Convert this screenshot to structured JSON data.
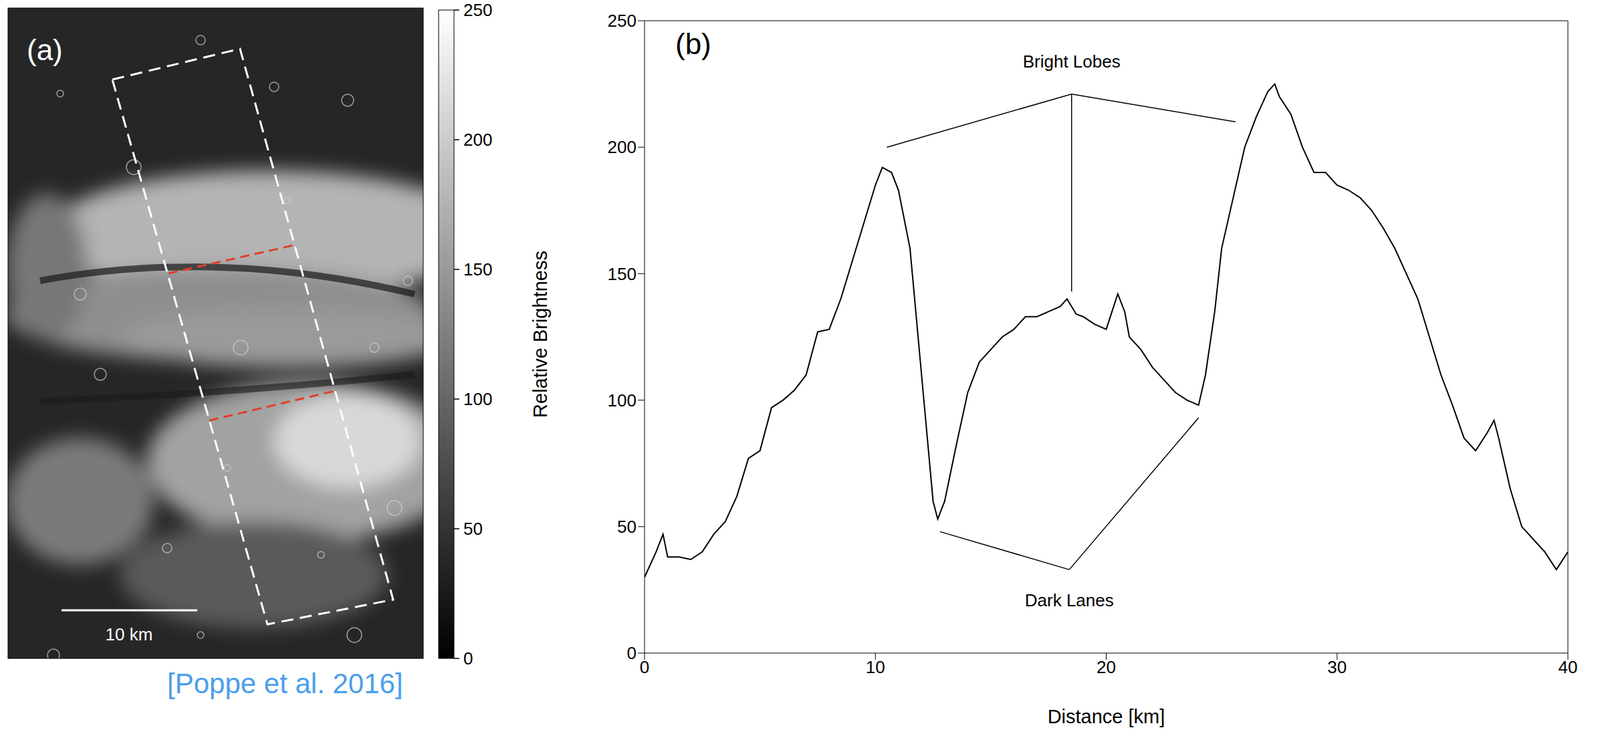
{
  "chart_data": [
    {
      "type": "image",
      "panel": "(a)",
      "scale_bar": "10 km",
      "colorbar": {
        "label": "Relative Brightness",
        "range": [
          0,
          250
        ],
        "ticks": [
          0,
          50,
          100,
          150,
          200,
          250
        ]
      }
    },
    {
      "type": "line",
      "panel": "(b)",
      "x_label": "Distance [km]",
      "color": "#000000",
      "xlim": [
        0,
        40
      ],
      "xticks": [
        0,
        10,
        20,
        30,
        40
      ],
      "ylim": [
        0,
        250
      ],
      "yticks": [
        0,
        50,
        100,
        150,
        200,
        250
      ],
      "x": [
        0,
        0.5,
        0.8,
        1,
        1.5,
        2,
        2.5,
        3,
        3.5,
        4,
        4.5,
        5,
        5.5,
        6,
        6.5,
        7,
        7.5,
        8,
        8.5,
        9,
        9.5,
        10,
        10.3,
        10.7,
        11,
        11.5,
        12,
        12.5,
        12.7,
        13,
        13.5,
        14,
        14.5,
        15,
        15.5,
        16,
        16.5,
        17,
        17.5,
        18,
        18.3,
        18.7,
        19,
        19.5,
        20,
        20.5,
        20.8,
        21,
        21.5,
        22,
        22.5,
        23,
        23.5,
        24,
        24.3,
        24.7,
        25,
        25.5,
        26,
        26.5,
        27,
        27.3,
        27.5,
        28,
        28.5,
        29,
        29.5,
        30,
        30.5,
        31,
        31.5,
        32,
        32.5,
        33,
        33.5,
        34,
        34.5,
        35,
        35.5,
        36,
        36.5,
        36.8,
        37,
        37.5,
        38,
        38.5,
        39,
        39.5,
        40
      ],
      "values": [
        30,
        40,
        47,
        38,
        38,
        37,
        40,
        47,
        52,
        62,
        77,
        80,
        97,
        100,
        104,
        110,
        127,
        128,
        140,
        155,
        170,
        185,
        192,
        190,
        183,
        160,
        110,
        60,
        53,
        60,
        82,
        103,
        115,
        120,
        125,
        128,
        133,
        133,
        135,
        137,
        140,
        134,
        133,
        130,
        128,
        142,
        135,
        125,
        120,
        113,
        108,
        103,
        100,
        98,
        110,
        135,
        160,
        180,
        200,
        212,
        222,
        225,
        220,
        213,
        200,
        190,
        190,
        185,
        183,
        180,
        175,
        168,
        160,
        150,
        140,
        125,
        110,
        98,
        85,
        80,
        87,
        92,
        85,
        65,
        50,
        45,
        40,
        33,
        40
      ],
      "annotations": [
        {
          "text": "Bright Lobes",
          "x": 18.5,
          "y": 234,
          "from": [
            18.5,
            221
          ],
          "to": [
            [
              10.5,
              200
            ],
            [
              18.5,
              143
            ],
            [
              25.6,
              210
            ]
          ]
        },
        {
          "text": "Dark Lanes",
          "x": 18.4,
          "y": 21,
          "from": [
            18.4,
            33
          ],
          "to": [
            [
              12.8,
              48
            ],
            [
              24,
              93
            ]
          ]
        }
      ]
    }
  ],
  "source": "[Poppe et al. 2016]"
}
